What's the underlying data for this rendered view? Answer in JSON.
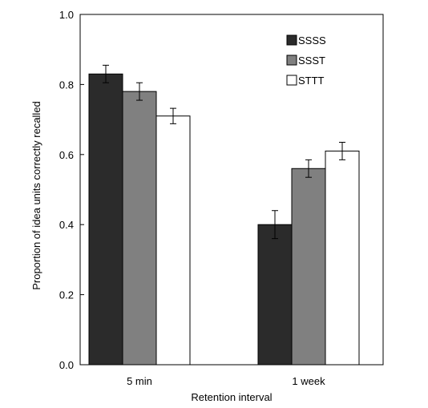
{
  "chart_data": {
    "type": "bar",
    "categories": [
      "5 min",
      "1 week"
    ],
    "series": [
      {
        "name": "SSSS",
        "values": [
          0.83,
          0.4
        ],
        "errors": [
          0.025,
          0.04
        ],
        "color": "#2b2b2b"
      },
      {
        "name": "SSST",
        "values": [
          0.78,
          0.56
        ],
        "errors": [
          0.025,
          0.025
        ],
        "color": "#808080"
      },
      {
        "name": "STTT",
        "values": [
          0.71,
          0.61
        ],
        "errors": [
          0.022,
          0.025
        ],
        "color": "#ffffff"
      }
    ],
    "xlabel": "Retention interval",
    "ylabel": "Proportion of idea units correctly recalled",
    "ylim": [
      0,
      1.0
    ],
    "yticks": [
      "0.0",
      "0.2",
      "0.4",
      "0.6",
      "0.8",
      "1.0"
    ],
    "ytick_values": [
      0,
      0.2,
      0.4,
      0.6,
      0.8,
      1.0
    ],
    "legend_position": "top-right",
    "grid": false
  }
}
